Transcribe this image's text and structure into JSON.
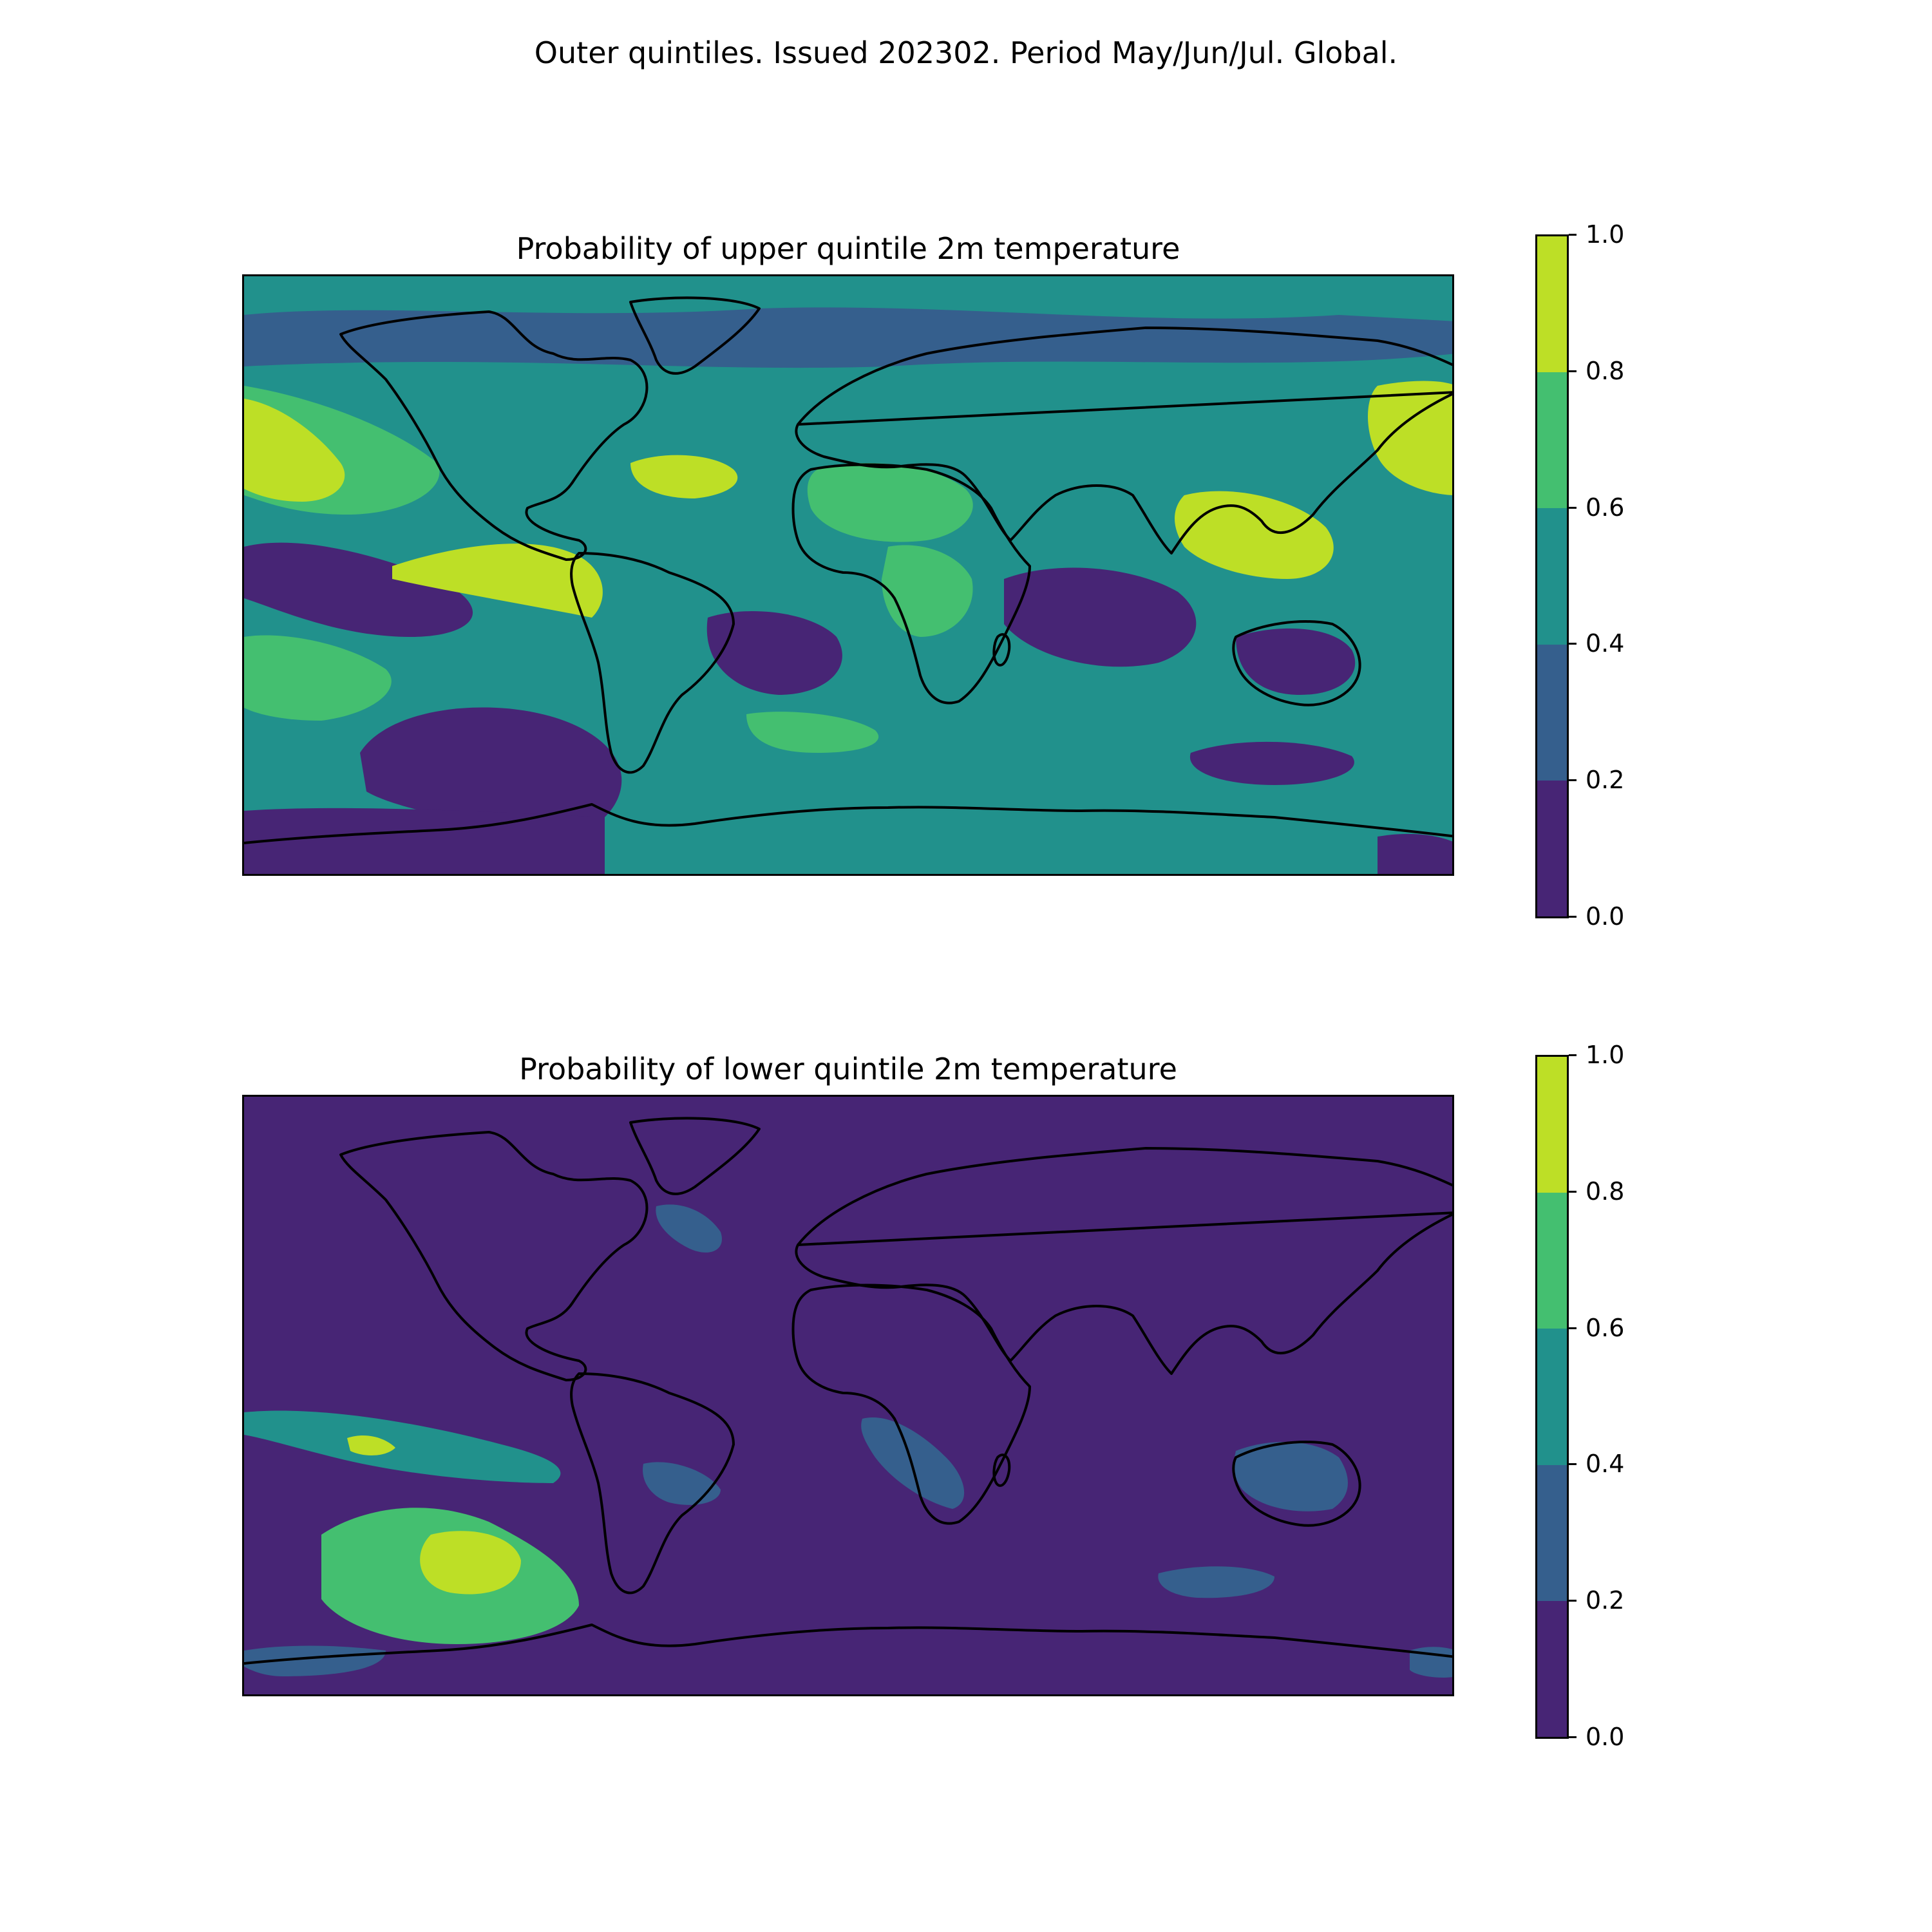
{
  "figure": {
    "title": "Outer quintiles. Issued 202302. Period May/Jun/Jul. Global."
  },
  "colormap": {
    "levels": [
      0.0,
      0.2,
      0.4,
      0.6,
      0.8,
      1.0
    ],
    "tick_labels": [
      "0.0",
      "0.2",
      "0.4",
      "0.6",
      "0.8",
      "1.0"
    ],
    "colors": [
      "#472575",
      "#355f8d",
      "#21918c",
      "#44bf70",
      "#bddf26"
    ]
  },
  "panels": [
    {
      "id": "upper",
      "title": "Probability of upper quintile 2m temperature",
      "background_level": 2,
      "regions": [
        {
          "name": "north-pacific-warm-band",
          "level": 3
        },
        {
          "name": "north-pacific-peak",
          "level": 4
        },
        {
          "name": "east-asia-pacific-peak",
          "level": 4
        },
        {
          "name": "maritime-continent-peak",
          "level": 4
        },
        {
          "name": "eastern-equatorial-pacific-peak",
          "level": 4
        },
        {
          "name": "north-atlantic-peak",
          "level": 4
        },
        {
          "name": "sahara-warm",
          "level": 3
        },
        {
          "name": "central-africa-warm",
          "level": 3
        },
        {
          "name": "south-pacific-warm",
          "level": 3
        },
        {
          "name": "south-atlantic-warm",
          "level": 3
        },
        {
          "name": "southeast-pacific-cool",
          "level": 0
        },
        {
          "name": "south-atlantic-cool",
          "level": 0
        },
        {
          "name": "indian-ocean-cool",
          "level": 0
        },
        {
          "name": "australia-cool",
          "level": 0
        },
        {
          "name": "southern-ocean-cool",
          "level": 0
        },
        {
          "name": "antarctica-cool",
          "level": 0
        },
        {
          "name": "arctic-low",
          "level": 1
        }
      ]
    },
    {
      "id": "lower",
      "title": "Probability of lower quintile 2m temperature",
      "background_level": 0,
      "regions": [
        {
          "name": "north-pacific-band",
          "level": 2
        },
        {
          "name": "north-pacific-band-peak",
          "level": 4
        },
        {
          "name": "southeast-pacific-patch",
          "level": 3
        },
        {
          "name": "southeast-pacific-peak",
          "level": 4
        },
        {
          "name": "australia-patch",
          "level": 1
        },
        {
          "name": "south-america-patch",
          "level": 1
        },
        {
          "name": "southern-africa-patch",
          "level": 1
        },
        {
          "name": "southern-indian-ocean-patch",
          "level": 1
        },
        {
          "name": "labrador-sea-patch",
          "level": 1
        },
        {
          "name": "antarctic-peninsula-patch",
          "level": 1
        }
      ]
    }
  ]
}
